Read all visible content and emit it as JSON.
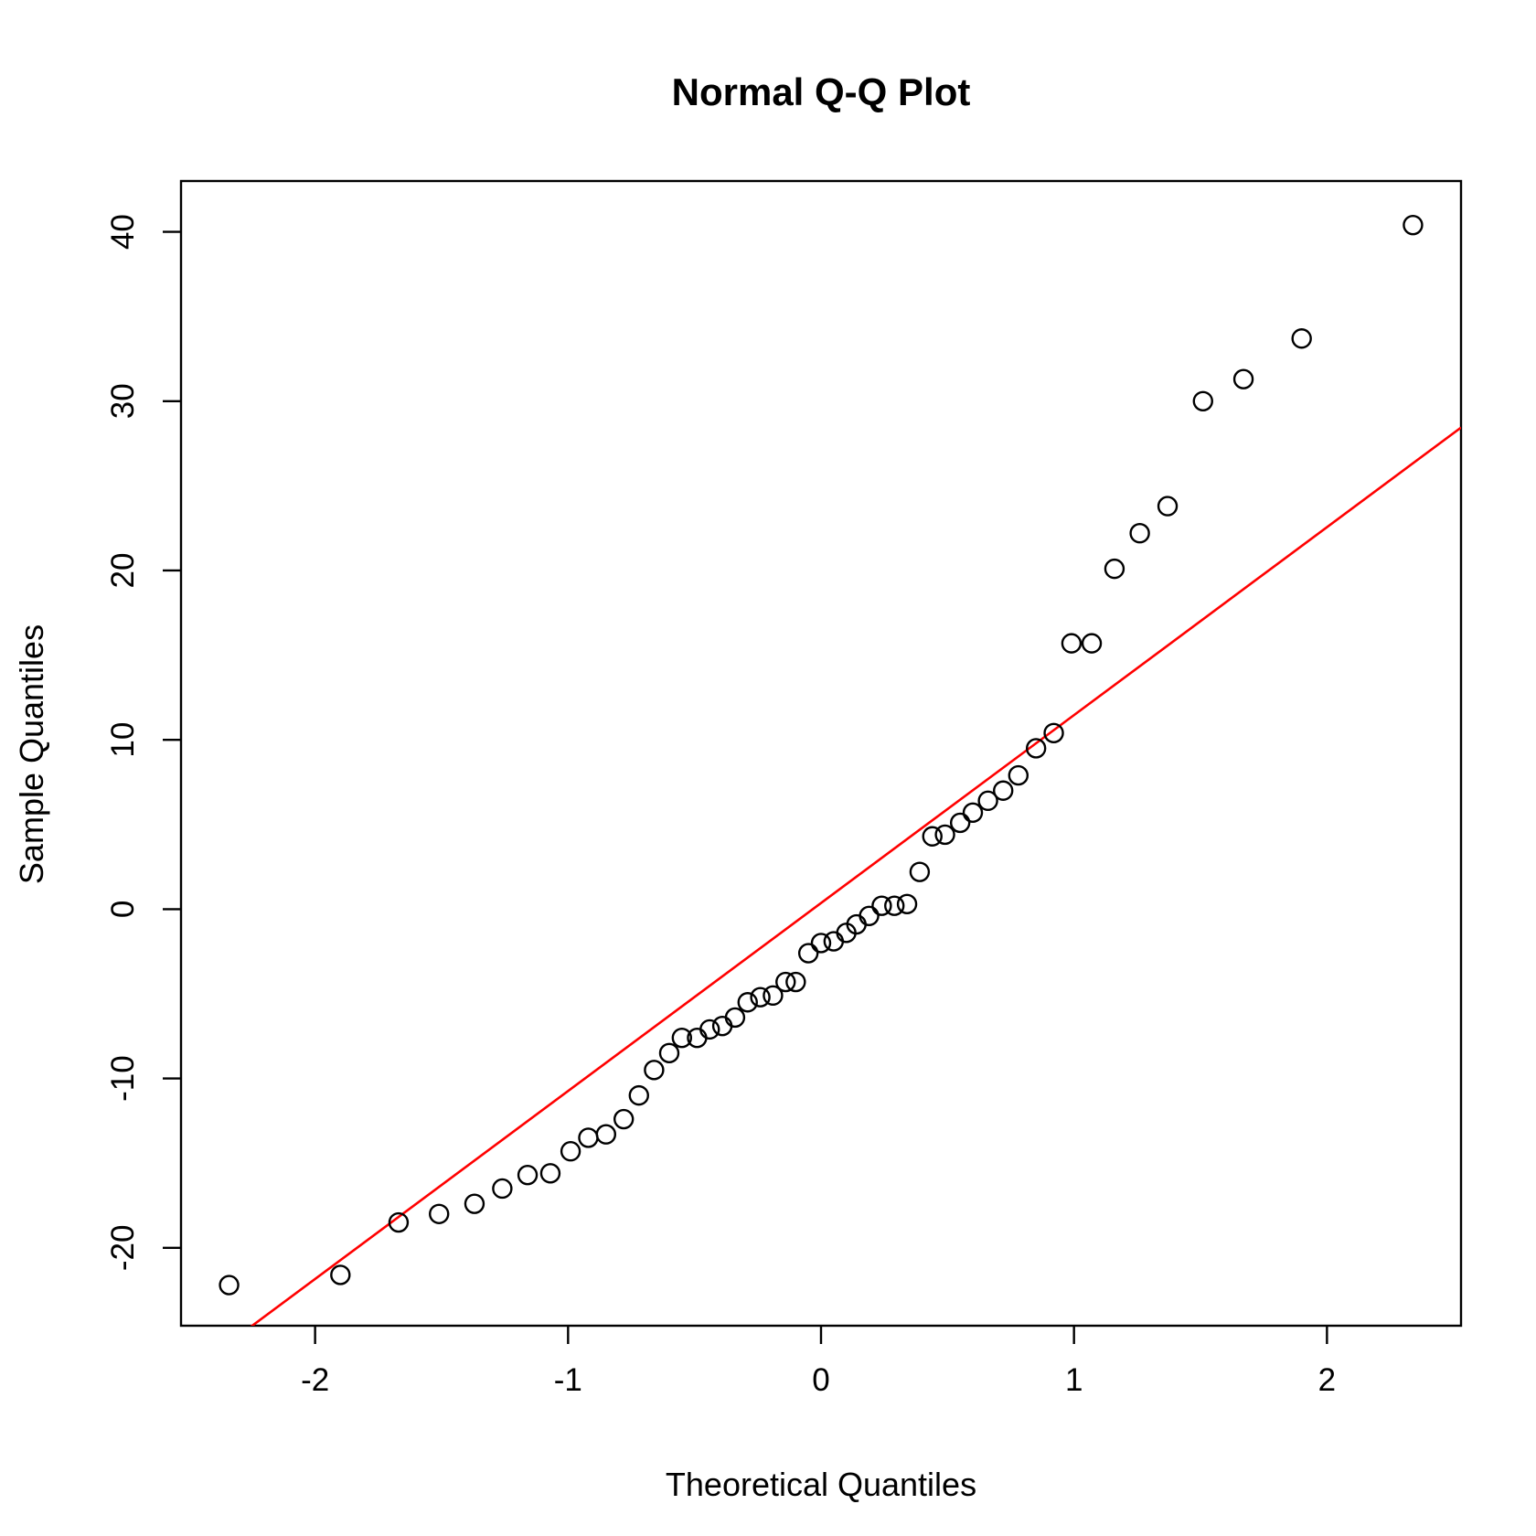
{
  "chart_data": {
    "type": "scatter",
    "title": "Normal Q-Q Plot",
    "xlabel": "Theoretical Quantiles",
    "ylabel": "Sample Quantiles",
    "xlim": [
      -2.53,
      2.53
    ],
    "ylim": [
      -24.6,
      43.0
    ],
    "x_ticks": [
      -2,
      -1,
      0,
      1,
      2
    ],
    "x_tick_labels": [
      "-2",
      "-1",
      "0",
      "1",
      "2"
    ],
    "y_ticks": [
      -20,
      -10,
      0,
      10,
      20,
      30,
      40
    ],
    "y_tick_labels": [
      "-20",
      "-10",
      "0",
      "10",
      "20",
      "30",
      "40"
    ],
    "grid": false,
    "point_color": "#000000",
    "line_color": "#ff0000",
    "points": [
      {
        "x": -2.34,
        "y": -22.2
      },
      {
        "x": -1.9,
        "y": -21.6
      },
      {
        "x": -1.67,
        "y": -18.5
      },
      {
        "x": -1.51,
        "y": -18.0
      },
      {
        "x": -1.37,
        "y": -17.4
      },
      {
        "x": -1.26,
        "y": -16.5
      },
      {
        "x": -1.16,
        "y": -15.7
      },
      {
        "x": -1.07,
        "y": -15.6
      },
      {
        "x": -0.99,
        "y": -14.3
      },
      {
        "x": -0.92,
        "y": -13.5
      },
      {
        "x": -0.85,
        "y": -13.3
      },
      {
        "x": -0.78,
        "y": -12.4
      },
      {
        "x": -0.72,
        "y": -11.0
      },
      {
        "x": -0.66,
        "y": -9.5
      },
      {
        "x": -0.6,
        "y": -8.5
      },
      {
        "x": -0.55,
        "y": -7.6
      },
      {
        "x": -0.49,
        "y": -7.6
      },
      {
        "x": -0.44,
        "y": -7.1
      },
      {
        "x": -0.39,
        "y": -6.9
      },
      {
        "x": -0.34,
        "y": -6.4
      },
      {
        "x": -0.29,
        "y": -5.5
      },
      {
        "x": -0.24,
        "y": -5.2
      },
      {
        "x": -0.19,
        "y": -5.1
      },
      {
        "x": -0.14,
        "y": -4.3
      },
      {
        "x": -0.1,
        "y": -4.3
      },
      {
        "x": -0.05,
        "y": -2.6
      },
      {
        "x": 0.0,
        "y": -2.0
      },
      {
        "x": 0.05,
        "y": -1.9
      },
      {
        "x": 0.1,
        "y": -1.4
      },
      {
        "x": 0.14,
        "y": -0.9
      },
      {
        "x": 0.19,
        "y": -0.4
      },
      {
        "x": 0.24,
        "y": 0.2
      },
      {
        "x": 0.29,
        "y": 0.2
      },
      {
        "x": 0.34,
        "y": 0.3
      },
      {
        "x": 0.39,
        "y": 2.2
      },
      {
        "x": 0.44,
        "y": 4.3
      },
      {
        "x": 0.49,
        "y": 4.4
      },
      {
        "x": 0.55,
        "y": 5.1
      },
      {
        "x": 0.6,
        "y": 5.7
      },
      {
        "x": 0.66,
        "y": 6.4
      },
      {
        "x": 0.72,
        "y": 7.0
      },
      {
        "x": 0.78,
        "y": 7.9
      },
      {
        "x": 0.85,
        "y": 9.5
      },
      {
        "x": 0.92,
        "y": 10.4
      },
      {
        "x": 0.99,
        "y": 15.7
      },
      {
        "x": 1.07,
        "y": 15.7
      },
      {
        "x": 1.16,
        "y": 20.1
      },
      {
        "x": 1.26,
        "y": 22.2
      },
      {
        "x": 1.37,
        "y": 23.8
      },
      {
        "x": 1.51,
        "y": 30.0
      },
      {
        "x": 1.67,
        "y": 31.3
      },
      {
        "x": 1.9,
        "y": 33.7
      },
      {
        "x": 2.34,
        "y": 40.4
      }
    ],
    "reference_line": {
      "intercept": 0.36,
      "slope": 11.1
    }
  }
}
